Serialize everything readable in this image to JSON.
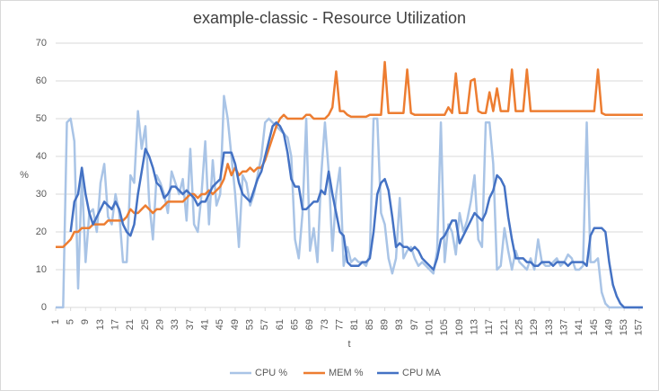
{
  "chart_data": {
    "type": "line",
    "title": "example-classic - Resource Utilization",
    "xlabel": "t",
    "ylabel": "%",
    "x": [
      1,
      2,
      3,
      4,
      5,
      6,
      7,
      8,
      9,
      10,
      11,
      12,
      13,
      14,
      15,
      16,
      17,
      18,
      19,
      20,
      21,
      22,
      23,
      24,
      25,
      26,
      27,
      28,
      29,
      30,
      31,
      32,
      33,
      34,
      35,
      36,
      37,
      38,
      39,
      40,
      41,
      42,
      43,
      44,
      45,
      46,
      47,
      48,
      49,
      50,
      51,
      52,
      53,
      54,
      55,
      56,
      57,
      58,
      59,
      60,
      61,
      62,
      63,
      64,
      65,
      66,
      67,
      68,
      69,
      70,
      71,
      72,
      73,
      74,
      75,
      76,
      77,
      78,
      79,
      80,
      81,
      82,
      83,
      84,
      85,
      86,
      87,
      88,
      89,
      90,
      91,
      92,
      93,
      94,
      95,
      96,
      97,
      98,
      99,
      100,
      101,
      102,
      103,
      104,
      105,
      106,
      107,
      108,
      109,
      110,
      111,
      112,
      113,
      114,
      115,
      116,
      117,
      118,
      119,
      120,
      121,
      122,
      123,
      124,
      125,
      126,
      127,
      128,
      129,
      130,
      131,
      132,
      133,
      134,
      135,
      136,
      137,
      138,
      139,
      140,
      141,
      142,
      143,
      144,
      145,
      146,
      147,
      148,
      149,
      150,
      151,
      152,
      153,
      154,
      155,
      156,
      157,
      158
    ],
    "xlim": [
      1,
      158
    ],
    "xticks": [
      1,
      5,
      9,
      13,
      17,
      21,
      25,
      29,
      33,
      37,
      41,
      45,
      49,
      53,
      57,
      61,
      65,
      69,
      73,
      77,
      81,
      85,
      89,
      93,
      97,
      101,
      105,
      109,
      113,
      117,
      121,
      125,
      129,
      133,
      137,
      141,
      145,
      149,
      153,
      157
    ],
    "ylim": [
      0,
      70
    ],
    "yticks": [
      0,
      10,
      20,
      30,
      40,
      50,
      60,
      70
    ],
    "grid": true,
    "legend": "bottom",
    "series": [
      {
        "name": "CPU %",
        "color": "#a9c4e6",
        "values": [
          0,
          0,
          0,
          49,
          50,
          44,
          5,
          35,
          12,
          25,
          26,
          20,
          33,
          38,
          24,
          22,
          30,
          25,
          12,
          12,
          35,
          33,
          52,
          42,
          48,
          28,
          18,
          35,
          33,
          30,
          25,
          36,
          33,
          30,
          34,
          23,
          42,
          22,
          20,
          30,
          44,
          22,
          39,
          27,
          30,
          56,
          50,
          40,
          30,
          16,
          35,
          33,
          27,
          30,
          35,
          40,
          49,
          50,
          49,
          48,
          47,
          46,
          45,
          40,
          18,
          13,
          25,
          50,
          15,
          21,
          12,
          35,
          49,
          36,
          15,
          30,
          37,
          11,
          16,
          12,
          13,
          12,
          12,
          11,
          14,
          50,
          50,
          25,
          22,
          13,
          9,
          13,
          29,
          13,
          15,
          16,
          13,
          11,
          12,
          11,
          10,
          9,
          15,
          49,
          12,
          22,
          20,
          14,
          25,
          20,
          23,
          28,
          35,
          18,
          16,
          49,
          49,
          38,
          10,
          11,
          21,
          15,
          10,
          15,
          12,
          11,
          10,
          13,
          10,
          18,
          12,
          11,
          11,
          12,
          13,
          11,
          12,
          14,
          13,
          10,
          10,
          11,
          49,
          12,
          12,
          13,
          4,
          1,
          0,
          0,
          0,
          0,
          0,
          0,
          0,
          0,
          0,
          0
        ]
      },
      {
        "name": "MEM %",
        "color": "#ed7d31",
        "values": [
          16,
          16,
          16,
          17,
          18,
          20,
          20,
          21,
          21,
          21,
          22,
          22,
          22,
          22,
          23,
          23,
          23,
          23,
          23,
          24,
          26,
          25,
          25,
          26,
          27,
          26,
          25,
          26,
          26,
          27,
          28,
          28,
          28,
          28,
          28,
          29,
          30,
          30,
          29,
          30,
          30,
          31,
          30,
          31,
          32,
          34,
          38,
          35,
          37,
          35,
          36,
          36,
          37,
          36,
          37,
          37,
          39,
          42,
          45,
          48,
          50,
          51,
          50,
          50,
          50,
          50,
          50,
          51,
          51,
          50,
          50,
          50,
          50,
          51,
          53,
          62.5,
          52,
          52,
          51,
          50.5,
          50.5,
          50.5,
          50.5,
          50.5,
          51,
          51,
          51,
          51,
          65,
          51.5,
          51.5,
          51.5,
          51.5,
          51.5,
          63,
          51.5,
          51,
          51,
          51,
          51,
          51,
          51,
          51,
          51,
          51,
          53,
          51.5,
          62,
          51.5,
          51.5,
          51.5,
          60,
          60.5,
          52,
          51.5,
          51.5,
          57,
          52,
          58,
          52,
          52,
          52,
          63,
          52,
          52,
          52,
          63,
          52,
          52,
          52,
          52,
          52,
          52,
          52,
          52,
          52,
          52,
          52,
          52,
          52,
          52,
          52,
          52,
          52,
          52,
          63,
          51.5,
          51,
          51,
          51,
          51,
          51,
          51,
          51,
          51,
          51,
          51,
          51
        ]
      },
      {
        "name": "CPU MA",
        "color": "#4472c4",
        "values": [
          null,
          null,
          null,
          null,
          20,
          28,
          30,
          37,
          30,
          25,
          22,
          24,
          26,
          28,
          27,
          26,
          28,
          26,
          22,
          20,
          19,
          22,
          30,
          36,
          42,
          40,
          37,
          33,
          32,
          29,
          30,
          32,
          32,
          31,
          30,
          31,
          30,
          29,
          27,
          28,
          28,
          30,
          32,
          33,
          34,
          41,
          41,
          41,
          38,
          33,
          30,
          29,
          28,
          31,
          34,
          36,
          40,
          44,
          48,
          49,
          48,
          46,
          41,
          34,
          32,
          32,
          26,
          26,
          27,
          28,
          28,
          31,
          30,
          36,
          30,
          25,
          20,
          19,
          12,
          11,
          11,
          11,
          12,
          12,
          13,
          20,
          30,
          33,
          34,
          31,
          24,
          16,
          17,
          16,
          16,
          15,
          16,
          15,
          13,
          12,
          11,
          10,
          13,
          18,
          19,
          21,
          23,
          23,
          17,
          19,
          21,
          23,
          25,
          24,
          23,
          25,
          29,
          31,
          35,
          34,
          32,
          24,
          18,
          13,
          13,
          13,
          12,
          12,
          11,
          11,
          12,
          12,
          12,
          11,
          12,
          12,
          12,
          11,
          12,
          12,
          12,
          12,
          11,
          19,
          21,
          21,
          21,
          20,
          12,
          6,
          3,
          1,
          0,
          0,
          0,
          0,
          0,
          0
        ]
      }
    ]
  }
}
